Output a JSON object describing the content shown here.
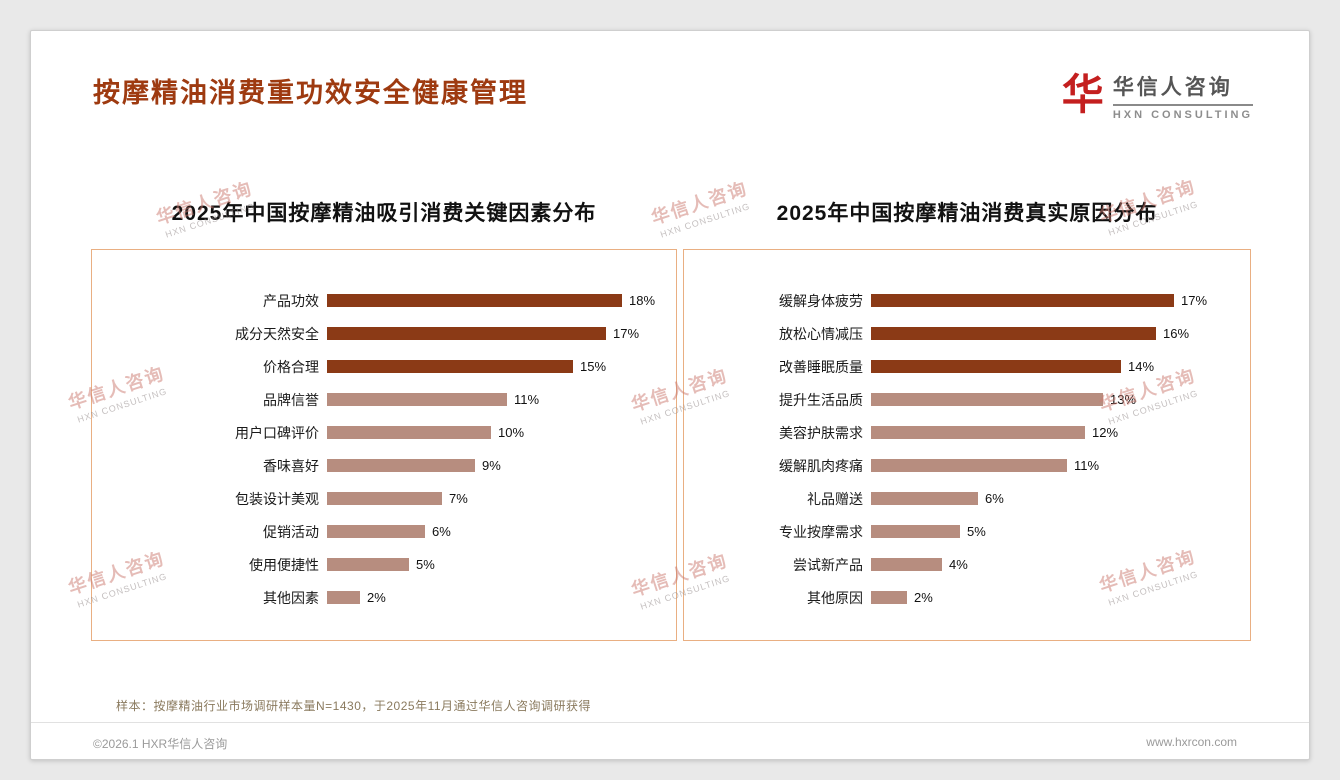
{
  "page": {
    "title": "按摩精油消费重功效安全健康管理",
    "title_color": "#9e3a10"
  },
  "logo": {
    "glyph": "华",
    "name_cn": "华信人咨询",
    "name_en": "HXN CONSULTING"
  },
  "watermark": {
    "line1": "华信人咨询",
    "line2": "HXN CONSULTING"
  },
  "footnote": "样本：按摩精油行业市场调研样本量N=1430，于2025年11月通过华信人咨询调研获得",
  "footer": {
    "copyright": "©2026.1 HXR华信人咨询",
    "website": "www.hxrcon.com"
  },
  "chart_data": [
    {
      "type": "bar",
      "orientation": "horizontal",
      "title": "2025年中国按摩精油吸引消费关键因素分布",
      "categories": [
        "产品功效",
        "成分天然安全",
        "价格合理",
        "品牌信誉",
        "用户口碑评价",
        "香味喜好",
        "包装设计美观",
        "促销活动",
        "使用便捷性",
        "其他因素"
      ],
      "values": [
        18,
        17,
        15,
        11,
        10,
        9,
        7,
        6,
        5,
        2
      ],
      "unit": "%",
      "highlight_count": 3,
      "bar_color_primary": "#8b3a16",
      "bar_color_secondary": "#b78d7f",
      "xlim": [
        0,
        20
      ],
      "grid": false,
      "legend": "none"
    },
    {
      "type": "bar",
      "orientation": "horizontal",
      "title": "2025年中国按摩精油消费真实原因分布",
      "categories": [
        "缓解身体疲劳",
        "放松心情减压",
        "改善睡眠质量",
        "提升生活品质",
        "美容护肤需求",
        "缓解肌肉疼痛",
        "礼品赠送",
        "专业按摩需求",
        "尝试新产品",
        "其他原因"
      ],
      "values": [
        17,
        16,
        14,
        13,
        12,
        11,
        6,
        5,
        4,
        2
      ],
      "unit": "%",
      "highlight_count": 3,
      "bar_color_primary": "#8b3a16",
      "bar_color_secondary": "#b78d7f",
      "xlim": [
        0,
        20
      ],
      "grid": false,
      "legend": "none"
    }
  ]
}
